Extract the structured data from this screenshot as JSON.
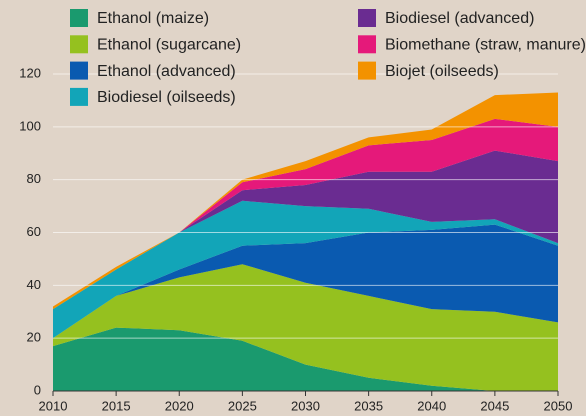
{
  "chart_data": {
    "type": "stacked_area",
    "x": [
      2010,
      2015,
      2020,
      2025,
      2030,
      2035,
      2040,
      2045,
      2050
    ],
    "xlim": [
      2010,
      2050
    ],
    "xticks": [
      2010,
      2015,
      2020,
      2025,
      2030,
      2035,
      2040,
      2045,
      2050
    ],
    "ylim": [
      0,
      120
    ],
    "yticks": [
      0,
      20,
      40,
      60,
      80,
      100,
      120
    ],
    "grid": true,
    "series": [
      {
        "name": "Ethanol (maize)",
        "color": "#1a9a6e",
        "values": [
          17,
          24,
          23,
          19,
          10,
          5,
          2,
          0,
          0
        ]
      },
      {
        "name": "Ethanol (sugarcane)",
        "color": "#95c11f",
        "values": [
          3,
          12,
          20,
          29,
          31,
          31,
          29,
          30,
          26
        ]
      },
      {
        "name": "Ethanol (advanced)",
        "color": "#0a5ab0",
        "values": [
          0,
          0,
          3,
          7,
          15,
          24,
          30,
          33,
          29
        ]
      },
      {
        "name": "Biodiesel (oilseeds)",
        "color": "#12a5b8",
        "values": [
          11,
          10,
          14,
          17,
          14,
          9,
          3,
          2,
          1
        ]
      },
      {
        "name": "Biodiesel (advanced)",
        "color": "#6a2c91",
        "values": [
          0,
          0,
          0,
          4,
          8,
          14,
          19,
          26,
          31
        ]
      },
      {
        "name": "Biomethane (straw, manure)",
        "color": "#e5197a",
        "values": [
          0,
          0,
          0,
          3,
          6,
          10,
          12,
          12,
          13
        ]
      },
      {
        "name": "Biojet (oilseeds)",
        "color": "#f39200",
        "values": [
          1,
          1,
          0,
          1,
          3,
          3,
          4,
          9,
          13
        ]
      }
    ]
  }
}
